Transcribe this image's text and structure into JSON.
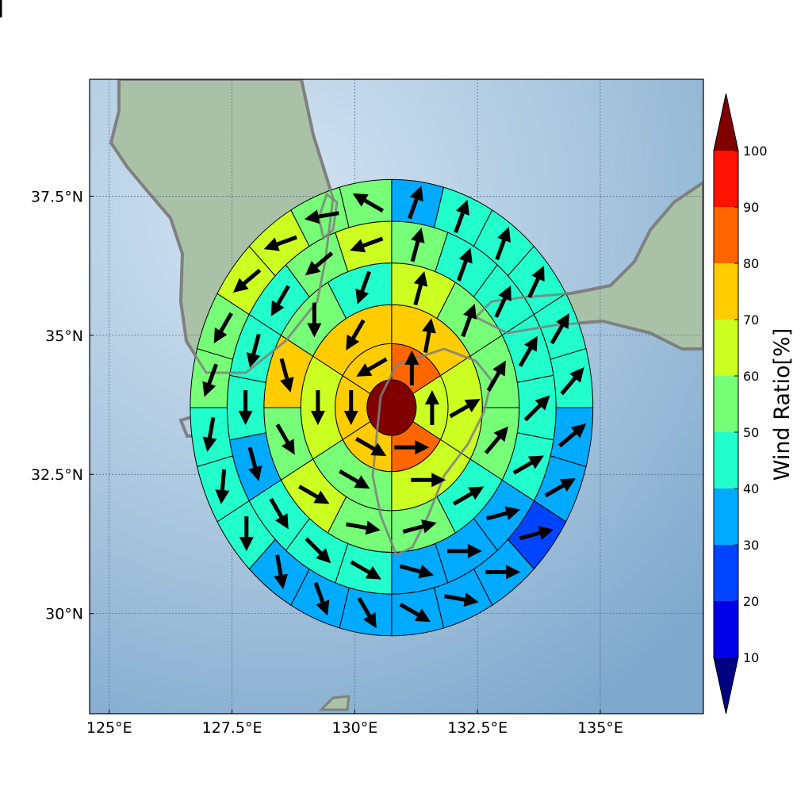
{
  "chart_data": {
    "type": "polar-sector-map",
    "title": "",
    "xlabel": "",
    "ylabel": "",
    "xlim": [
      124.6,
      137.1
    ],
    "ylim": [
      28.2,
      39.6
    ],
    "grid": true,
    "x_ticks": [
      {
        "value": 125.0,
        "label": "125°E"
      },
      {
        "value": 127.5,
        "label": "127.5°E"
      },
      {
        "value": 130.0,
        "label": "130°E"
      },
      {
        "value": 132.5,
        "label": "132.5°E"
      },
      {
        "value": 135.0,
        "label": "135°E"
      }
    ],
    "y_ticks": [
      {
        "value": 30.0,
        "label": "30°N"
      },
      {
        "value": 32.5,
        "label": "32.5°N"
      },
      {
        "value": 35.0,
        "label": "35°N"
      },
      {
        "value": 37.5,
        "label": "37.5°N"
      }
    ],
    "center": {
      "lon": 130.75,
      "lat": 33.7
    },
    "center_value": 100,
    "ring_edges_deg": [
      0.5,
      1.15,
      1.85,
      2.6,
      3.35,
      4.1
    ],
    "sector_values": [
      [
        80,
        60,
        80,
        70,
        70,
        70
      ],
      [
        70,
        60,
        60,
        50,
        60,
        70
      ],
      [
        60,
        50,
        50,
        50,
        40,
        50,
        50,
        60,
        50,
        70,
        50,
        40
      ],
      [
        50,
        40,
        40,
        40,
        40,
        40,
        30,
        30,
        30,
        40,
        40,
        40,
        30,
        40,
        40,
        40,
        50,
        60
      ],
      [
        30,
        40,
        40,
        40,
        40,
        40,
        30,
        30,
        20,
        30,
        30,
        30,
        30,
        30,
        30,
        40,
        40,
        40,
        50,
        50,
        60,
        60,
        50,
        50
      ],
      [
        30,
        30,
        40,
        40,
        40,
        40,
        40,
        30,
        20,
        20,
        20,
        20,
        30,
        30,
        20,
        20,
        40,
        40,
        40,
        60,
        70,
        60,
        50,
        40
      ]
    ],
    "arrow_angles_deg": [
      [
        0,
        0,
        90,
        120,
        180,
        240
      ],
      [
        10,
        60,
        90,
        120,
        180,
        210
      ],
      [
        15,
        20,
        30,
        40,
        60,
        75,
        100,
        120,
        150,
        165,
        180,
        200
      ],
      [
        15,
        20,
        25,
        30,
        45,
        60,
        75,
        90,
        105,
        120,
        135,
        150,
        165,
        180,
        195,
        210,
        230,
        250
      ],
      [
        20,
        20,
        20,
        25,
        30,
        40,
        50,
        60,
        75,
        90,
        100,
        120,
        150,
        160,
        170,
        180,
        185,
        190,
        200,
        210,
        230,
        250,
        260,
        300
      ],
      [
        20,
        20,
        25,
        25,
        30,
        40,
        60,
        70,
        80,
        90,
        100,
        115,
        130,
        150,
        160,
        175,
        180,
        185,
        195,
        210,
        225,
        245,
        265,
        280
      ]
    ],
    "colorbar": {
      "label": "Wind Ratio[%]",
      "ticks": [
        "10",
        "20",
        "30",
        "40",
        "50",
        "60",
        "70",
        "80",
        "90",
        "100"
      ],
      "under_color": "#000080",
      "over_color": "#800000",
      "bins": [
        {
          "min": 10,
          "max": 20,
          "color": "#0000e6"
        },
        {
          "min": 20,
          "max": 30,
          "color": "#0044ff"
        },
        {
          "min": 30,
          "max": 40,
          "color": "#00aaff"
        },
        {
          "min": 40,
          "max": 50,
          "color": "#22ffcc"
        },
        {
          "min": 50,
          "max": 60,
          "color": "#77ff77"
        },
        {
          "min": 60,
          "max": 70,
          "color": "#ccff22"
        },
        {
          "min": 70,
          "max": 80,
          "color": "#ffcc00"
        },
        {
          "min": 80,
          "max": 90,
          "color": "#ff6600"
        },
        {
          "min": 90,
          "max": 100,
          "color": "#ff1100"
        }
      ]
    },
    "colors": {
      "coastline": "#808080",
      "sea": "#a9c6de",
      "land": "#a9c2a7",
      "sector_edge": "#000000",
      "arrow": "#000000"
    }
  }
}
